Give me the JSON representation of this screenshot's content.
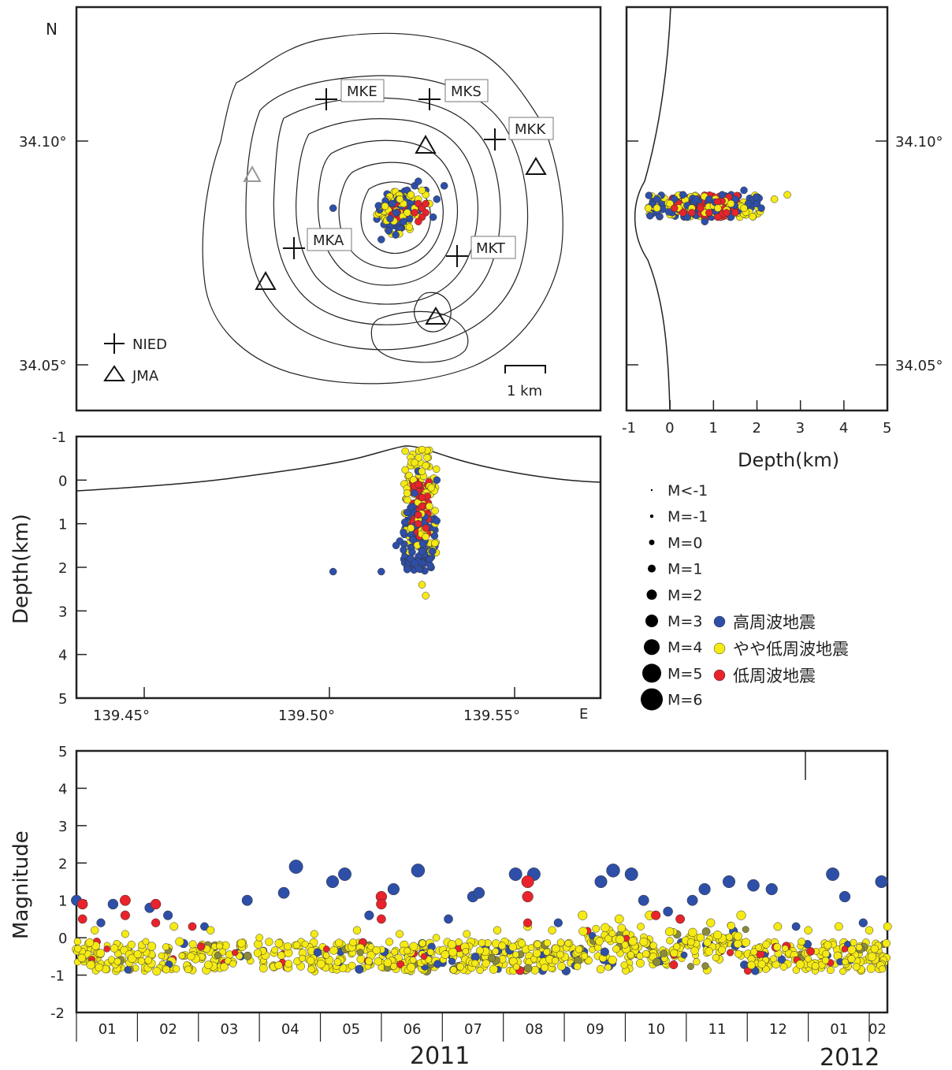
{
  "colors": {
    "high_freq": "#2e4fa8",
    "mid_freq": "#f5ea14",
    "low_freq": "#e8232b",
    "outline": "#222222"
  },
  "map_panel": {
    "north_label": "N",
    "lat_ticks": [
      "34.10°",
      "34.05°"
    ],
    "stations_nied": [
      "MKE",
      "MKS",
      "MKK",
      "MKA",
      "MKT"
    ],
    "legend": {
      "nied": "NIED",
      "jma": "JMA"
    },
    "scale_label": "1 km"
  },
  "ns_section": {
    "lat_ticks": [
      "34.10°",
      "34.05°"
    ],
    "x_ticks": [
      "-1",
      "0",
      "1",
      "2",
      "3",
      "4",
      "5"
    ],
    "xlabel": "Depth(km)"
  },
  "ew_section": {
    "y_ticks": [
      "-1",
      "0",
      "1",
      "2",
      "3",
      "4",
      "5"
    ],
    "ylabel": "Depth(km)",
    "lon_ticks": [
      "139.45°",
      "139.50°",
      "139.55°"
    ],
    "east_label": "E"
  },
  "magnitude_legend": {
    "sizes": [
      "M<-1",
      "M=-1",
      "M=0",
      "M=1",
      "M=2",
      "M=3",
      "M=4",
      "M=5",
      "M=6"
    ],
    "event_types": [
      {
        "label": "高周波地震",
        "color": "#2e4fa8"
      },
      {
        "label": "やや低周波地震",
        "color": "#f5ea14"
      },
      {
        "label": "低周波地震",
        "color": "#e8232b"
      }
    ]
  },
  "chart_data": [
    {
      "type": "scatter",
      "title": "",
      "xlabel": "",
      "ylabel": "",
      "description": "epicenter map",
      "series": [
        {
          "name": "高周波地震",
          "x": [
            139.521,
            139.523,
            139.519,
            139.526,
            139.527,
            139.518,
            139.522,
            139.528,
            139.517,
            139.524,
            139.52,
            139.529,
            139.501,
            139.514,
            139.516,
            139.531
          ],
          "y": [
            34.089,
            34.09,
            34.087,
            34.089,
            34.086,
            34.084,
            34.088,
            34.083,
            34.086,
            34.091,
            34.082,
            34.087,
            34.085,
            34.078,
            34.08,
            34.09
          ]
        },
        {
          "name": "やや低周波地震",
          "x": [
            139.522,
            139.524,
            139.52,
            139.526,
            139.523,
            139.521,
            139.525,
            139.527,
            139.519,
            139.524
          ],
          "y": [
            34.088,
            34.087,
            34.086,
            34.088,
            34.085,
            34.084,
            34.089,
            34.086,
            34.087,
            34.083
          ]
        },
        {
          "name": "低周波地震",
          "x": [
            139.524,
            139.525,
            139.526,
            139.523,
            139.525,
            139.524,
            139.526
          ],
          "y": [
            34.086,
            34.085,
            34.084,
            34.084,
            34.083,
            34.082,
            34.086
          ]
        }
      ]
    },
    {
      "type": "scatter",
      "xlabel": "Depth(km)",
      "xlim": [
        -1,
        5
      ],
      "series": [
        {
          "name": "高周波地震",
          "x": [
            -0.3,
            0.1,
            0.3,
            0.6,
            0.9,
            1.2,
            1.5,
            1.8,
            2.0,
            2.1,
            1.4,
            0.4,
            0.8,
            1.7
          ],
          "y": [
            34.087,
            34.087,
            34.088,
            34.087,
            34.087,
            34.088,
            34.087,
            34.086,
            34.086,
            34.085,
            34.083,
            34.083,
            34.082,
            34.089
          ]
        },
        {
          "name": "やや低周波地震",
          "x": [
            -0.5,
            -0.3,
            0.0,
            0.2,
            0.5,
            0.8,
            1.1,
            1.4,
            1.7,
            2.4,
            2.7
          ],
          "y": [
            34.085,
            34.085,
            34.086,
            34.085,
            34.085,
            34.084,
            34.085,
            34.086,
            34.085,
            34.087,
            34.088
          ]
        },
        {
          "name": "低周波地震",
          "x": [
            0.1,
            0.3,
            0.5,
            0.7,
            0.9,
            1.1,
            1.3,
            1.5
          ],
          "y": [
            34.085,
            34.084,
            34.084,
            34.085,
            34.084,
            34.083,
            34.084,
            34.084
          ]
        }
      ]
    },
    {
      "type": "scatter",
      "ylabel": "Depth(km)",
      "ylim": [
        5,
        -1
      ],
      "series": [
        {
          "name": "高周波地震",
          "x": [
            139.501,
            139.514,
            139.52,
            139.521,
            139.522,
            139.519,
            139.52,
            139.523,
            139.524,
            139.521,
            139.529,
            139.518,
            139.523
          ],
          "y": [
            2.1,
            2.1,
            1.6,
            2.0,
            1.8,
            1.4,
            1.2,
            0.3,
            -0.2,
            2.05,
            0.0,
            1.5,
            1.9
          ]
        },
        {
          "name": "やや低周波地震",
          "x": [
            139.525,
            139.526,
            139.525,
            139.523,
            139.521,
            139.524,
            139.526,
            139.527,
            139.522,
            139.525
          ],
          "y": [
            2.4,
            2.65,
            -0.7,
            -0.4,
            0.3,
            0.9,
            1.3,
            0.6,
            1.1,
            -0.2
          ]
        },
        {
          "name": "低周波地震",
          "x": [
            139.524,
            139.525,
            139.524,
            139.526,
            139.525,
            139.524
          ],
          "y": [
            0.1,
            0.4,
            0.8,
            1.1,
            0.6,
            1.0
          ]
        }
      ]
    },
    {
      "type": "scatter",
      "xlabel": "",
      "ylabel": "Magnitude",
      "ylim": [
        -2,
        5
      ],
      "x_ticks": [
        "01",
        "02",
        "03",
        "04",
        "05",
        "06",
        "07",
        "08",
        "09",
        "10",
        "11",
        "12",
        "01",
        "02"
      ],
      "year_labels": [
        "2011",
        "2012"
      ],
      "x_units": "months since 2011-01-01",
      "series": [
        {
          "name": "高周波地震",
          "x": [
            0.0,
            0.6,
            1.2,
            1.5,
            2.8,
            3.4,
            3.6,
            4.2,
            4.4,
            5.2,
            5.6,
            6.5,
            6.6,
            7.2,
            7.5,
            8.6,
            8.8,
            9.1,
            9.3,
            10.1,
            10.3,
            10.7,
            11.1,
            11.4,
            12.4,
            12.6,
            13.2,
            0.4,
            2.1,
            4.8,
            6.1,
            7.9,
            9.7,
            11.8,
            12.9
          ],
          "y": [
            1.0,
            0.9,
            0.8,
            0.6,
            1.0,
            1.2,
            1.9,
            1.5,
            1.7,
            1.3,
            1.8,
            1.1,
            1.2,
            1.7,
            1.7,
            1.5,
            1.8,
            1.7,
            1.0,
            1.0,
            1.3,
            1.5,
            1.4,
            1.3,
            1.7,
            1.1,
            1.5,
            0.4,
            0.3,
            0.6,
            0.5,
            0.4,
            0.7,
            0.3,
            0.4
          ]
        },
        {
          "name": "やや低周波地震",
          "x": [
            0.3,
            0.8,
            1.6,
            2.2,
            3.0,
            3.9,
            4.6,
            5.3,
            5.9,
            6.4,
            6.9,
            7.4,
            7.8,
            8.3,
            8.9,
            9.4,
            9.9,
            10.4,
            10.9,
            11.5,
            12.0,
            12.5,
            13.0,
            13.3
          ],
          "y": [
            0.2,
            0.1,
            0.3,
            0.2,
            0.0,
            0.1,
            0.2,
            0.1,
            0.0,
            0.1,
            0.2,
            0.3,
            0.2,
            0.6,
            0.5,
            0.6,
            0.5,
            0.4,
            0.6,
            0.3,
            0.2,
            0.3,
            0.2,
            0.3
          ]
        },
        {
          "name": "低周波地震",
          "x": [
            0.1,
            0.1,
            0.8,
            0.8,
            1.3,
            1.3,
            1.9,
            5.0,
            5.0,
            5.0,
            7.4,
            7.4,
            7.4,
            9.5,
            9.9,
            0.5,
            2.6,
            4.1,
            5.7,
            12.6
          ],
          "y": [
            0.9,
            0.5,
            1.0,
            0.6,
            0.9,
            0.4,
            0.3,
            1.1,
            0.9,
            0.5,
            1.5,
            1.1,
            0.4,
            0.6,
            0.5,
            -0.3,
            -0.4,
            -0.3,
            -0.5,
            -0.3
          ]
        }
      ]
    }
  ]
}
